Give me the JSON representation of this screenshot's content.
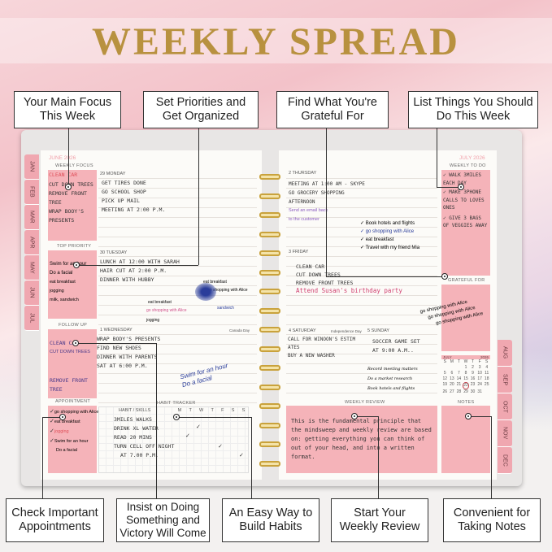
{
  "title": "WEEKLY SPREAD",
  "callouts_top": [
    "Your Main Focus This Week",
    "Set Priorities and Get Organized",
    "Find What You're Grateful For",
    "List Things You Should Do This Week"
  ],
  "callouts_bottom": [
    "Check Important Appointments",
    "Insist on Doing Something and Victory Will Come",
    "An Easy Way to Build Habits",
    "Start Your Weekly Review",
    "Convenient for Taking Notes"
  ],
  "months_left": [
    "JAN",
    "FEB",
    "MAR",
    "APR",
    "MAY",
    "JUN",
    "JUL"
  ],
  "months_right": [
    "AUG",
    "SEP",
    "OCT",
    "NOV",
    "DEC"
  ],
  "left": {
    "month": "JUNE 2026",
    "weekly_focus": {
      "label": "WEEKLY FOCUS",
      "items": [
        "CLEAN CAR",
        "CUT DOWN TREES",
        "REMOVE FRONT TREE",
        "WRAP BOOY'S PRESENTS"
      ]
    },
    "top_priority": {
      "label": "TOP PRIORITY",
      "items": [
        "Swim for an hour",
        "Do a facial",
        "eat breakfast",
        "jogging",
        "milk, sandwich"
      ]
    },
    "follow_up": {
      "label": "FOLLOW UP",
      "items": [
        "CLEAN CAR",
        "CUT DOWN TREES",
        "REMOVE FRONT TREE"
      ]
    },
    "appointment": {
      "label": "APPOINTMENT",
      "items": [
        "go shopping with Alice",
        "eat breakfast",
        "jogging",
        "Swim for an hour",
        "Do a facial"
      ]
    },
    "monday": {
      "label": "29  MONDAY",
      "items": [
        "GET TIRES DONE",
        "GO SCHOOL SHOP",
        "PICK UP MAIL",
        "MEETING AT 2:00 P.M."
      ]
    },
    "tuesday": {
      "label": "30  TUESDAY",
      "items": [
        "LUNCH AT 12:00 WITH SARAH",
        "HAIR CUT AT 2:00 P.M.",
        "DINNER WITH HUBBY"
      ],
      "notes": [
        "eat breakfast",
        "go shopping with Alice",
        "jogging",
        "eat breakfast",
        "go shopping with Alice",
        "sandwich"
      ]
    },
    "wednesday": {
      "label": "1  WEDNESDAY",
      "holiday": "Canada Day",
      "items": [
        "WRAP BODY'S PRESENTS",
        "FIND NEW SHOES",
        "DINNER WITH PARENTS",
        "SAT AT 6:00 P.M."
      ],
      "notes": [
        "Swim for an hour",
        "Do a facial"
      ]
    },
    "habit_tracker": {
      "label": "HABIT TRACKER",
      "col_label": "HABIT / SKILLS",
      "days": [
        "M",
        "T",
        "W",
        "T",
        "F",
        "S",
        "S"
      ],
      "habits": [
        "3MILES WALKS",
        "DRINK XL WATER",
        "READ 20 MINS",
        "TURN CELL OFF NIGHT",
        "AT 7.00 P.M."
      ]
    }
  },
  "right": {
    "month": "JULY 2026",
    "thursday": {
      "label": "2  THURSDAY",
      "items": [
        "MEETING AT 1:00 AM - SKYPE",
        "GO GROCERY SHOPPING",
        "AFTERNOON"
      ],
      "notes": [
        "Send an email back",
        "to the customer"
      ],
      "checklist": [
        "Book hotels and flights",
        "go shopping with Alice",
        "eat breakfast",
        "Travel with my friend Mia"
      ]
    },
    "friday": {
      "label": "3  FRIDAY",
      "items": [
        "CLEAN CAR",
        "CUT DOWN TREES",
        "REMOVE FRONT TREES"
      ],
      "highlight": "Attend Susan's birthday party"
    },
    "saturday": {
      "label": "4  SATURDAY",
      "holiday": "Independence Day",
      "items": [
        "CALL FOR WINOON'S ESTIM",
        "ATES",
        "BUY A NEW WASHER"
      ]
    },
    "sunday": {
      "label": "5  SUNDAY",
      "items": [
        "SOCCER GAME SET",
        "AT 9:00 A.M.."
      ],
      "notes": [
        "Record meeting matters",
        "Do a market research",
        "Book hotels and flights"
      ]
    },
    "weekly_todo": {
      "label": "WEEKLY TO DO",
      "items": [
        "WALK 3MILES EACH DAY",
        "MAKE 3PHONE CALLS TO LOVES ONES",
        "GIVE 3 BAGS OF VEGGIES AWAY"
      ]
    },
    "grateful_for": {
      "label": "GRATEFUL FOR",
      "items": [
        "go shopping with Alice",
        "go shopping with Alice",
        "go shopping with Alice"
      ]
    },
    "calendar": {
      "month": "JULY",
      "year": "2026",
      "weekdays": [
        "S",
        "M",
        "T",
        "W",
        "T",
        "F",
        "S"
      ],
      "first_weekday": 3,
      "days": 31,
      "circled": 22
    },
    "weekly_review": {
      "label": "WEEKLY REVIEW",
      "text": "This is the fundamental principle that the mindsweep and weekly review are based on: getting everything you can think of out of your head, and into a written format."
    },
    "notes": {
      "label": "NOTES"
    }
  },
  "colors": {
    "accent_pink": "#f5b3b9",
    "gold": "#b8913f",
    "red_text": "#e0505a",
    "blue_ink": "#2a3d9a",
    "purple_ink": "#8a5bbf"
  }
}
